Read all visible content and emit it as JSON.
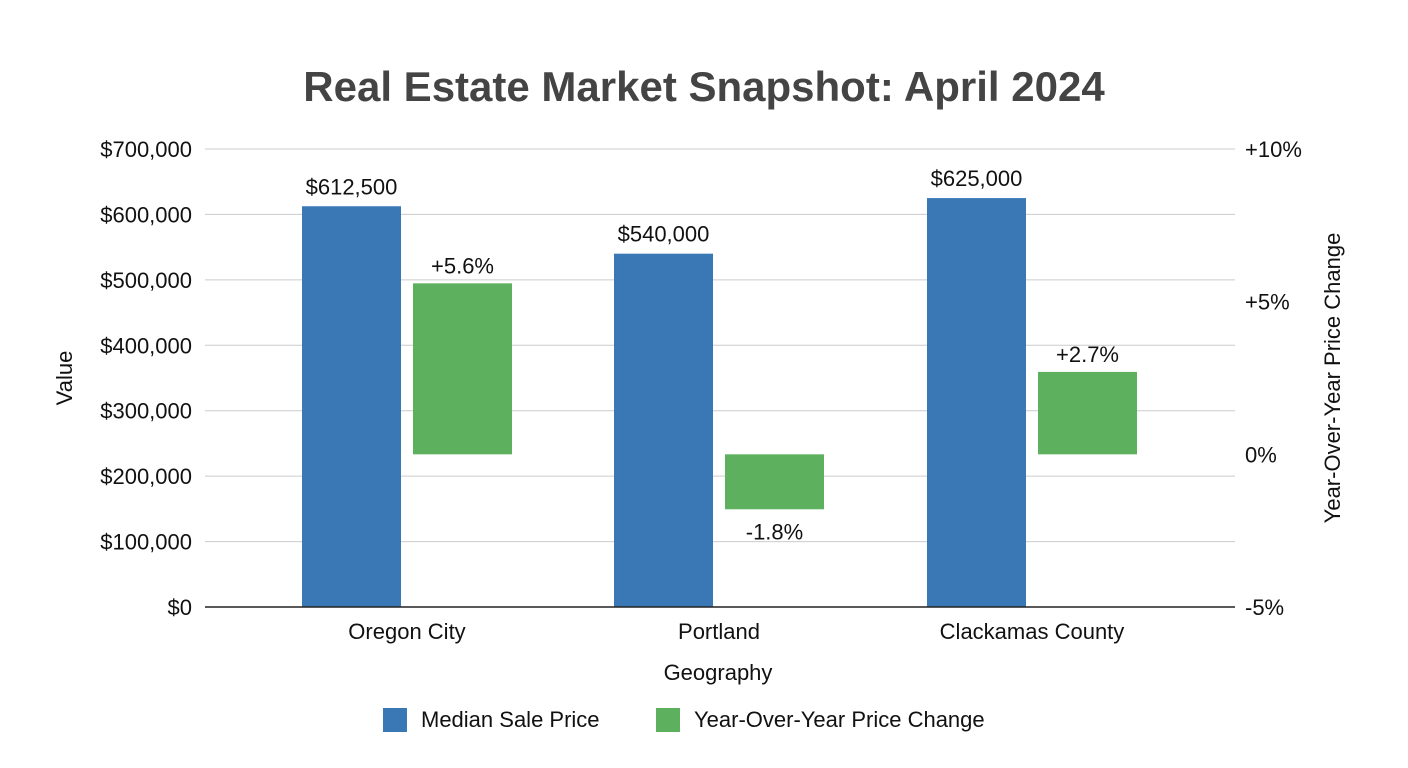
{
  "chart_data": {
    "type": "bar",
    "title": "Real Estate Market Snapshot: April 2024",
    "xlabel": "Geography",
    "ylabel": "Value",
    "y2label": "Year-Over-Year Price Change",
    "categories": [
      "Oregon City",
      "Portland",
      "Clackamas County"
    ],
    "ylim": [
      0,
      700000
    ],
    "y2lim": [
      -5,
      10
    ],
    "yticks": [
      0,
      100000,
      200000,
      300000,
      400000,
      500000,
      600000,
      700000
    ],
    "ytick_labels": [
      "$0",
      "$100,000",
      "$200,000",
      "$300,000",
      "$400,000",
      "$500,000",
      "$600,000",
      "$700,000"
    ],
    "y2ticks": [
      -5,
      0,
      5,
      10
    ],
    "y2tick_labels": [
      "-5%",
      "0%",
      "+5%",
      "+10%"
    ],
    "grid": true,
    "legend_position": "bottom",
    "series": [
      {
        "name": "Median Sale Price",
        "axis": "left",
        "color": "#3a78b5",
        "values": [
          612500,
          540000,
          625000
        ],
        "labels": [
          "$612,500",
          "$540,000",
          "$625,000"
        ]
      },
      {
        "name": "Year-Over-Year Price Change",
        "axis": "right",
        "color": "#5cb05e",
        "values": [
          5.6,
          -1.8,
          2.7
        ],
        "labels": [
          "+5.6%",
          "-1.8%",
          "+2.7%"
        ]
      }
    ]
  }
}
